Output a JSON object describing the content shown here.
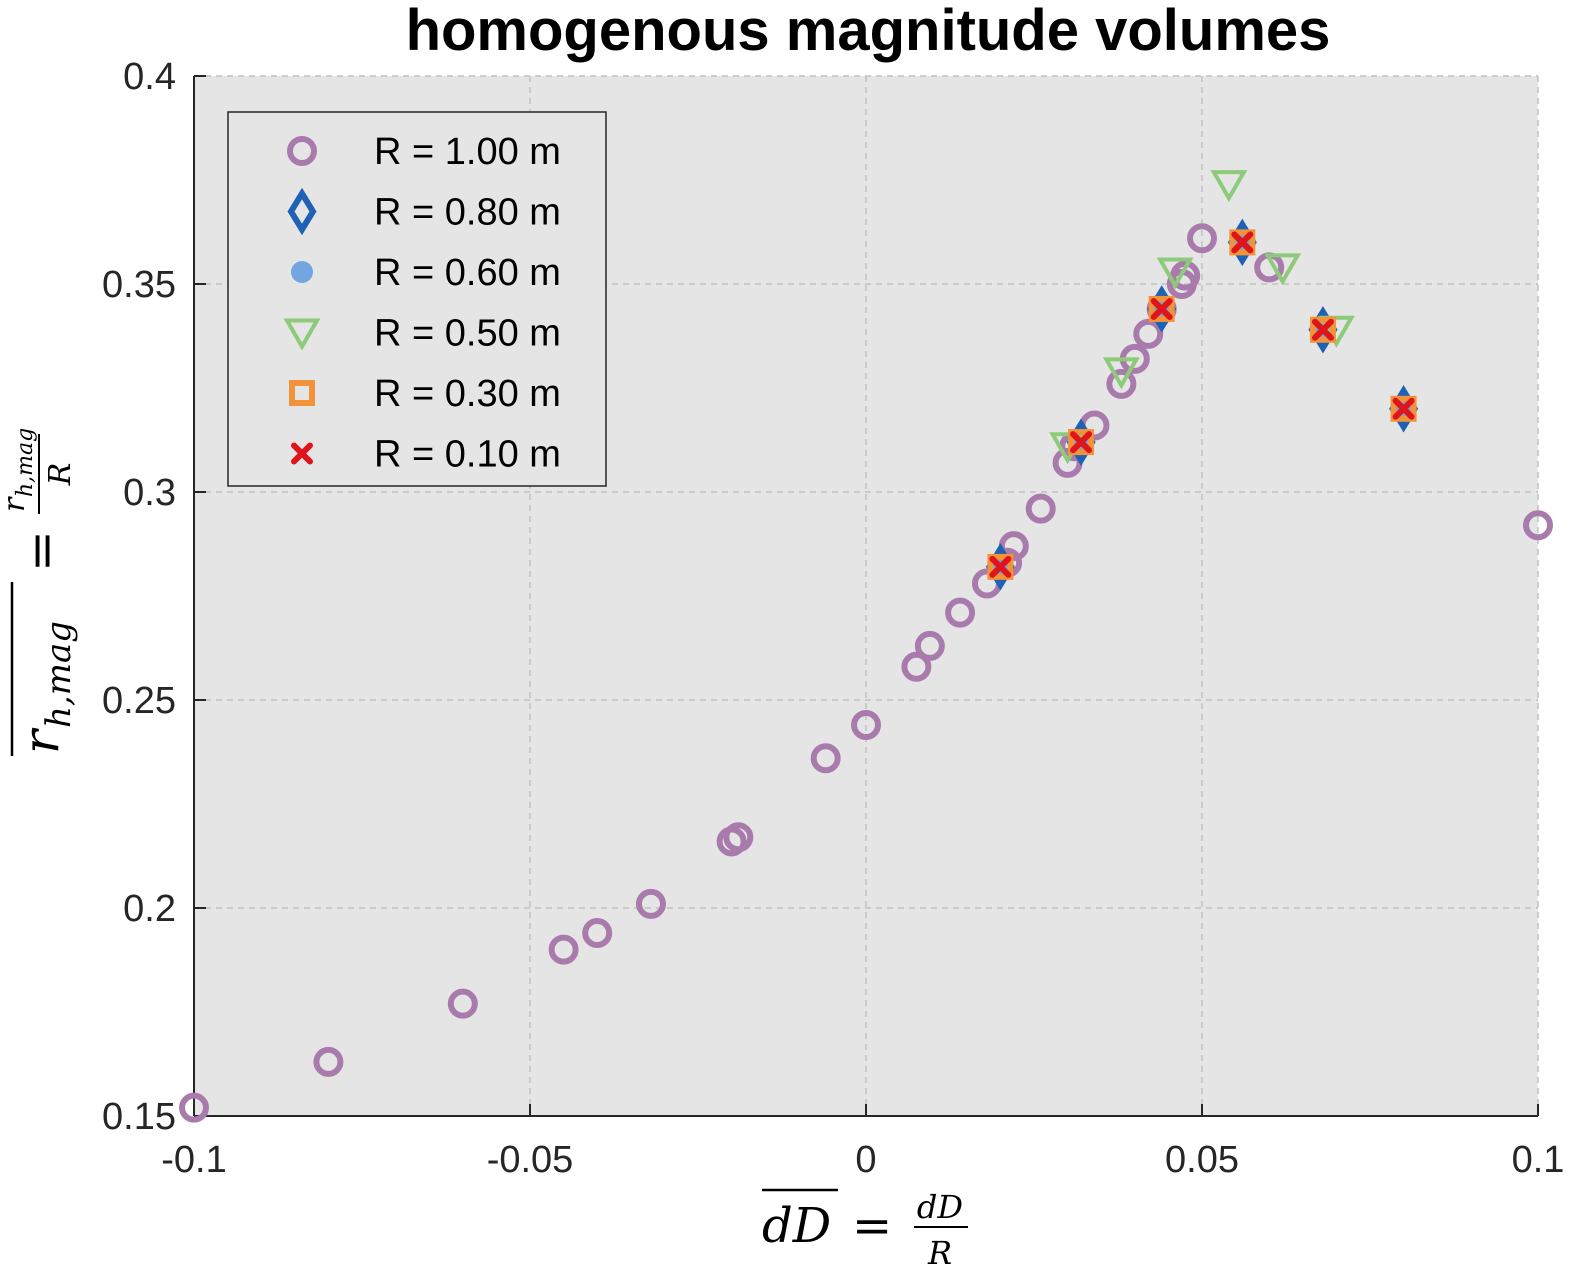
{
  "chart_data": {
    "type": "scatter",
    "title": "homogenous magnitude volumes",
    "xlim": [
      -0.1,
      0.1
    ],
    "ylim": [
      0.15,
      0.4
    ],
    "xticks": [
      "-0.1",
      "-0.05",
      "0",
      "0.05",
      "0.1"
    ],
    "xtick_values": [
      -0.1,
      -0.05,
      0,
      0.05,
      0.1
    ],
    "yticks": [
      "0.15",
      "0.2",
      "0.25",
      "0.3",
      "0.35",
      "0.4"
    ],
    "ytick_values": [
      0.15,
      0.2,
      0.25,
      0.3,
      0.35,
      0.4
    ],
    "xlabel": {
      "lhs": "dD",
      "equals": "=",
      "num": "dD",
      "den": "R"
    },
    "ylabel": {
      "lhs_base": "r",
      "lhs_sub": "h,mag",
      "equals": "=",
      "num_base": "r",
      "num_sub": "h,mag",
      "den": "R"
    },
    "grid": true,
    "legend_position": "top-left",
    "background_color": "#e5e5e5",
    "series": [
      {
        "name": "R = 1.00 m",
        "marker": "circle",
        "color": "#a97bac",
        "points": [
          [
            -0.1,
            0.152
          ],
          [
            -0.08,
            0.163
          ],
          [
            -0.06,
            0.177
          ],
          [
            -0.045,
            0.19
          ],
          [
            -0.04,
            0.194
          ],
          [
            -0.032,
            0.201
          ],
          [
            -0.02,
            0.216
          ],
          [
            -0.019,
            0.217
          ],
          [
            -0.006,
            0.236
          ],
          [
            0.0,
            0.244
          ],
          [
            0.0075,
            0.258
          ],
          [
            0.0095,
            0.263
          ],
          [
            0.014,
            0.271
          ],
          [
            0.018,
            0.278
          ],
          [
            0.021,
            0.283
          ],
          [
            0.022,
            0.287
          ],
          [
            0.026,
            0.296
          ],
          [
            0.03,
            0.307
          ],
          [
            0.031,
            0.311
          ],
          [
            0.034,
            0.316
          ],
          [
            0.038,
            0.326
          ],
          [
            0.04,
            0.332
          ],
          [
            0.042,
            0.338
          ],
          [
            0.044,
            0.344
          ],
          [
            0.047,
            0.35
          ],
          [
            0.0475,
            0.352
          ],
          [
            0.05,
            0.361
          ],
          [
            0.06,
            0.354
          ],
          [
            0.1,
            0.292
          ]
        ]
      },
      {
        "name": "R = 0.80 m",
        "marker": "diamond",
        "color": "#1f62b5",
        "points": [
          [
            0.02,
            0.282
          ],
          [
            0.032,
            0.312
          ],
          [
            0.044,
            0.344
          ],
          [
            0.056,
            0.36
          ],
          [
            0.068,
            0.339
          ],
          [
            0.08,
            0.32
          ]
        ]
      },
      {
        "name": "R = 0.60 m",
        "marker": "filled-circle",
        "color": "#73a6e0",
        "points": [
          [
            0.02,
            0.282
          ],
          [
            0.032,
            0.312
          ],
          [
            0.044,
            0.344
          ],
          [
            0.056,
            0.36
          ],
          [
            0.068,
            0.339
          ],
          [
            0.08,
            0.32
          ]
        ]
      },
      {
        "name": "R = 0.50 m",
        "marker": "triangle-down",
        "color": "#8dca7a",
        "points": [
          [
            0.03,
            0.311
          ],
          [
            0.038,
            0.329
          ],
          [
            0.046,
            0.353
          ],
          [
            0.054,
            0.374
          ],
          [
            0.062,
            0.354
          ],
          [
            0.07,
            0.339
          ]
        ]
      },
      {
        "name": "R = 0.30 m",
        "marker": "square",
        "color": "#f2933a",
        "points": [
          [
            0.02,
            0.282
          ],
          [
            0.032,
            0.312
          ],
          [
            0.044,
            0.344
          ],
          [
            0.056,
            0.36
          ],
          [
            0.068,
            0.339
          ],
          [
            0.08,
            0.32
          ]
        ]
      },
      {
        "name": "R = 0.10 m",
        "marker": "x",
        "color": "#e0141b",
        "points": [
          [
            0.02,
            0.282
          ],
          [
            0.032,
            0.312
          ],
          [
            0.044,
            0.344
          ],
          [
            0.056,
            0.36
          ],
          [
            0.068,
            0.339
          ],
          [
            0.08,
            0.32
          ]
        ]
      }
    ]
  }
}
